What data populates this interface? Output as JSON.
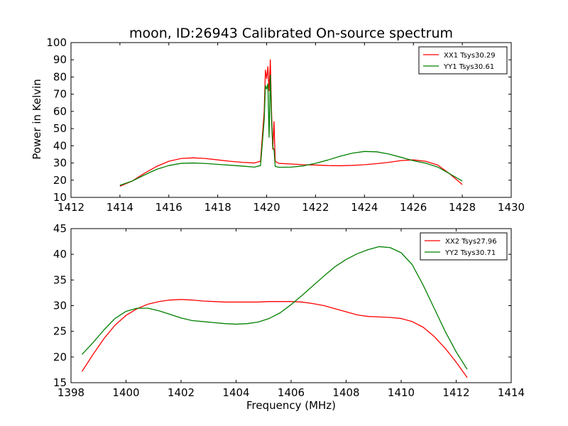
{
  "figure": {
    "title": "moon, ID:26943 Calibrated On-source spectrum",
    "xlabel": "Frequency (MHz)",
    "ylabel": "Power in Kelvin",
    "colors": {
      "xx": "#ff0000",
      "yy": "#008000",
      "axes": "#000000",
      "background": "#ffffff"
    }
  },
  "chart_data": [
    {
      "type": "line",
      "title": "moon, ID:26943 Calibrated On-source spectrum",
      "xlabel": "",
      "ylabel": "Power in Kelvin",
      "xlim": [
        1412,
        1430
      ],
      "ylim": [
        10,
        100
      ],
      "xticks": [
        "1412",
        "1414",
        "1416",
        "1418",
        "1420",
        "1422",
        "1424",
        "1426",
        "1428",
        "1430"
      ],
      "yticks": [
        "10",
        "20",
        "30",
        "40",
        "50",
        "60",
        "70",
        "80",
        "90",
        "100"
      ],
      "grid": false,
      "legend": "top-right",
      "series": [
        {
          "name": "XX1 Tsys30.29",
          "color": "#ff0000",
          "points": [
            [
              1414.0,
              16.5
            ],
            [
              1414.5,
              19.5
            ],
            [
              1415.0,
              24.0
            ],
            [
              1415.5,
              28.0
            ],
            [
              1416.0,
              31.0
            ],
            [
              1416.5,
              32.6
            ],
            [
              1417.0,
              33.0
            ],
            [
              1417.5,
              32.6
            ],
            [
              1418.0,
              31.8
            ],
            [
              1418.5,
              31.0
            ],
            [
              1419.0,
              30.4
            ],
            [
              1419.5,
              30.0
            ],
            [
              1419.75,
              31.0
            ],
            [
              1419.9,
              60.0
            ],
            [
              1419.95,
              84.0
            ],
            [
              1420.0,
              79.0
            ],
            [
              1420.05,
              86.0
            ],
            [
              1420.1,
              72.0
            ],
            [
              1420.15,
              90.0
            ],
            [
              1420.2,
              60.0
            ],
            [
              1420.25,
              38.0
            ],
            [
              1420.3,
              54.0
            ],
            [
              1420.35,
              31.0
            ],
            [
              1420.5,
              29.8
            ],
            [
              1421.0,
              29.4
            ],
            [
              1421.5,
              29.0
            ],
            [
              1422.0,
              28.8
            ],
            [
              1422.5,
              28.5
            ],
            [
              1423.0,
              28.4
            ],
            [
              1423.5,
              28.6
            ],
            [
              1424.0,
              29.0
            ],
            [
              1424.5,
              29.6
            ],
            [
              1425.0,
              30.4
            ],
            [
              1425.5,
              31.4
            ],
            [
              1426.0,
              31.8
            ],
            [
              1426.5,
              31.0
            ],
            [
              1427.0,
              28.8
            ],
            [
              1427.5,
              23.5
            ],
            [
              1428.0,
              17.5
            ]
          ]
        },
        {
          "name": "YY1 Tsys30.61",
          "color": "#008000",
          "points": [
            [
              1414.0,
              17.0
            ],
            [
              1414.5,
              19.5
            ],
            [
              1415.0,
              23.0
            ],
            [
              1415.5,
              26.3
            ],
            [
              1416.0,
              28.5
            ],
            [
              1416.5,
              29.8
            ],
            [
              1417.0,
              30.0
            ],
            [
              1417.5,
              29.7
            ],
            [
              1418.0,
              29.2
            ],
            [
              1418.5,
              28.7
            ],
            [
              1419.0,
              28.2
            ],
            [
              1419.5,
              27.6
            ],
            [
              1419.75,
              28.5
            ],
            [
              1419.9,
              55.0
            ],
            [
              1419.95,
              75.0
            ],
            [
              1420.0,
              73.0
            ],
            [
              1420.05,
              76.0
            ],
            [
              1420.1,
              45.0
            ],
            [
              1420.15,
              81.0
            ],
            [
              1420.2,
              55.0
            ],
            [
              1420.25,
              39.0
            ],
            [
              1420.3,
              38.0
            ],
            [
              1420.35,
              28.0
            ],
            [
              1420.5,
              27.5
            ],
            [
              1421.0,
              27.6
            ],
            [
              1421.5,
              28.3
            ],
            [
              1422.0,
              29.8
            ],
            [
              1422.5,
              31.7
            ],
            [
              1423.0,
              33.9
            ],
            [
              1423.5,
              35.7
            ],
            [
              1424.0,
              36.7
            ],
            [
              1424.5,
              36.5
            ],
            [
              1425.0,
              35.2
            ],
            [
              1425.5,
              33.3
            ],
            [
              1426.0,
              31.3
            ],
            [
              1426.5,
              29.9
            ],
            [
              1427.0,
              27.6
            ],
            [
              1427.5,
              23.6
            ],
            [
              1428.0,
              19.5
            ]
          ]
        }
      ]
    },
    {
      "type": "line",
      "title": "",
      "xlabel": "Frequency (MHz)",
      "ylabel": "",
      "xlim": [
        1398,
        1414
      ],
      "ylim": [
        15,
        45
      ],
      "xticks": [
        "1398",
        "1400",
        "1402",
        "1404",
        "1406",
        "1408",
        "1410",
        "1412",
        "1414"
      ],
      "yticks": [
        "15",
        "20",
        "25",
        "30",
        "35",
        "40",
        "45"
      ],
      "grid": false,
      "legend": "top-right",
      "series": [
        {
          "name": "XX2 Tsys27.96",
          "color": "#ff0000",
          "points": [
            [
              1398.4,
              17.2
            ],
            [
              1398.8,
              20.5
            ],
            [
              1399.2,
              23.6
            ],
            [
              1399.6,
              26.2
            ],
            [
              1400.0,
              28.1
            ],
            [
              1400.4,
              29.4
            ],
            [
              1400.8,
              30.3
            ],
            [
              1401.2,
              30.8
            ],
            [
              1401.6,
              31.1
            ],
            [
              1402.0,
              31.2
            ],
            [
              1402.4,
              31.1
            ],
            [
              1402.8,
              30.9
            ],
            [
              1403.2,
              30.8
            ],
            [
              1403.6,
              30.7
            ],
            [
              1404.0,
              30.7
            ],
            [
              1404.4,
              30.7
            ],
            [
              1404.8,
              30.7
            ],
            [
              1405.2,
              30.8
            ],
            [
              1405.6,
              30.8
            ],
            [
              1406.0,
              30.8
            ],
            [
              1406.4,
              30.7
            ],
            [
              1406.8,
              30.4
            ],
            [
              1407.2,
              30.0
            ],
            [
              1407.6,
              29.4
            ],
            [
              1408.0,
              28.8
            ],
            [
              1408.4,
              28.2
            ],
            [
              1408.8,
              27.9
            ],
            [
              1409.2,
              27.8
            ],
            [
              1409.6,
              27.7
            ],
            [
              1410.0,
              27.5
            ],
            [
              1410.4,
              26.9
            ],
            [
              1410.8,
              25.8
            ],
            [
              1411.2,
              24.0
            ],
            [
              1411.6,
              21.7
            ],
            [
              1412.0,
              19.0
            ],
            [
              1412.4,
              16.0
            ]
          ]
        },
        {
          "name": "YY2 Tsys30.71",
          "color": "#008000",
          "points": [
            [
              1398.4,
              20.5
            ],
            [
              1398.8,
              22.8
            ],
            [
              1399.2,
              25.3
            ],
            [
              1399.6,
              27.5
            ],
            [
              1400.0,
              28.9
            ],
            [
              1400.4,
              29.5
            ],
            [
              1400.8,
              29.5
            ],
            [
              1401.2,
              29.0
            ],
            [
              1401.6,
              28.3
            ],
            [
              1402.0,
              27.6
            ],
            [
              1402.4,
              27.1
            ],
            [
              1402.8,
              26.9
            ],
            [
              1403.2,
              26.7
            ],
            [
              1403.6,
              26.5
            ],
            [
              1404.0,
              26.4
            ],
            [
              1404.4,
              26.5
            ],
            [
              1404.8,
              26.8
            ],
            [
              1405.2,
              27.5
            ],
            [
              1405.6,
              28.6
            ],
            [
              1406.0,
              30.2
            ],
            [
              1406.4,
              32.0
            ],
            [
              1406.8,
              33.9
            ],
            [
              1407.2,
              35.8
            ],
            [
              1407.6,
              37.6
            ],
            [
              1408.0,
              39.0
            ],
            [
              1408.4,
              40.1
            ],
            [
              1408.8,
              40.9
            ],
            [
              1409.2,
              41.5
            ],
            [
              1409.6,
              41.3
            ],
            [
              1410.0,
              40.3
            ],
            [
              1410.4,
              38.0
            ],
            [
              1410.8,
              34.0
            ],
            [
              1411.2,
              29.5
            ],
            [
              1411.6,
              25.0
            ],
            [
              1412.0,
              21.0
            ],
            [
              1412.4,
              17.6
            ]
          ]
        }
      ]
    }
  ]
}
